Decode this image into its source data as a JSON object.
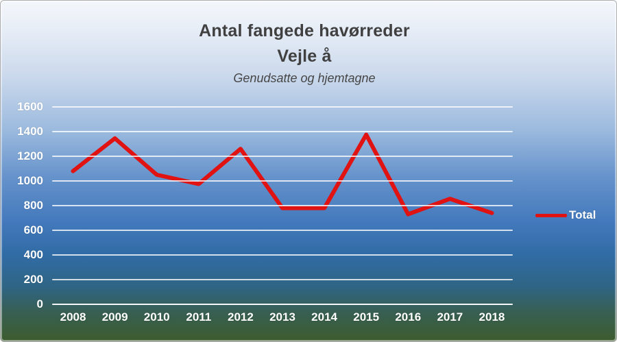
{
  "chart": {
    "title_line1": "Antal fangede havørreder",
    "title_line2": "Vejle å",
    "subtitle": "Genudsatte og hjemtagne"
  },
  "colors": {
    "series_red": "#e01212",
    "title_text": "#404040",
    "axis_text": "#ffffff",
    "gridline": "rgba(255,255,255,0.78)"
  },
  "chart_data": {
    "type": "line",
    "title": "Antal fangede havørreder Vejle å",
    "subtitle": "Genudsatte og hjemtagne",
    "categories": [
      "2008",
      "2009",
      "2010",
      "2011",
      "2012",
      "2013",
      "2014",
      "2015",
      "2016",
      "2017",
      "2018"
    ],
    "series": [
      {
        "name": "Total",
        "color": "#e01212",
        "values": [
          1080,
          1345,
          1050,
          975,
          1260,
          780,
          780,
          1375,
          730,
          855,
          740
        ]
      }
    ],
    "ylim": [
      0,
      1600
    ],
    "ytick_step": 200,
    "yticks": [
      "0",
      "200",
      "400",
      "600",
      "800",
      "1000",
      "1200",
      "1400",
      "1600"
    ],
    "grid": true,
    "legend_position": "right"
  }
}
